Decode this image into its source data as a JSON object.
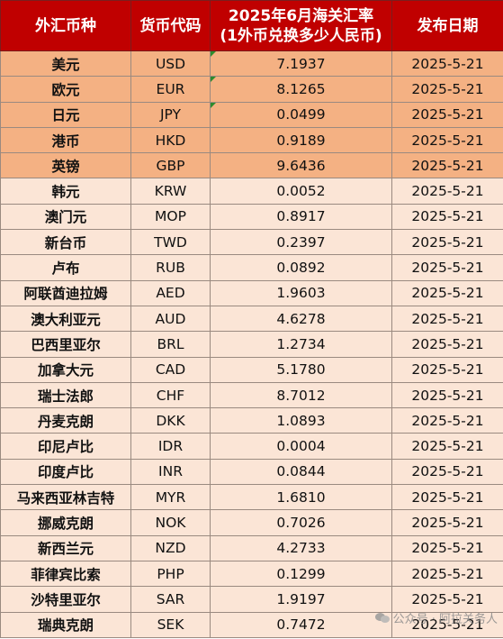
{
  "header": {
    "col1": "外汇币种",
    "col2": "货币代码",
    "col3_line1": "2025年6月海关汇率",
    "col3_line2": "(1外币兑换多少人民币)",
    "col4": "发布日期"
  },
  "rows": [
    {
      "name": "美元",
      "code": "USD",
      "rate": "7.1937",
      "date": "2025-5-21",
      "highlight": true,
      "mark": true
    },
    {
      "name": "欧元",
      "code": "EUR",
      "rate": "8.1265",
      "date": "2025-5-21",
      "highlight": true,
      "mark": true
    },
    {
      "name": "日元",
      "code": "JPY",
      "rate": "0.0499",
      "date": "2025-5-21",
      "highlight": true,
      "mark": true
    },
    {
      "name": "港币",
      "code": "HKD",
      "rate": "0.9189",
      "date": "2025-5-21",
      "highlight": true,
      "mark": false
    },
    {
      "name": "英镑",
      "code": "GBP",
      "rate": "9.6436",
      "date": "2025-5-21",
      "highlight": true,
      "mark": false
    },
    {
      "name": "韩元",
      "code": "KRW",
      "rate": "0.0052",
      "date": "2025-5-21",
      "highlight": false,
      "mark": false
    },
    {
      "name": "澳门元",
      "code": "MOP",
      "rate": "0.8917",
      "date": "2025-5-21",
      "highlight": false,
      "mark": false
    },
    {
      "name": "新台币",
      "code": "TWD",
      "rate": "0.2397",
      "date": "2025-5-21",
      "highlight": false,
      "mark": false
    },
    {
      "name": "卢布",
      "code": "RUB",
      "rate": "0.0892",
      "date": "2025-5-21",
      "highlight": false,
      "mark": false
    },
    {
      "name": "阿联酋迪拉姆",
      "code": "AED",
      "rate": "1.9603",
      "date": "2025-5-21",
      "highlight": false,
      "mark": false
    },
    {
      "name": "澳大利亚元",
      "code": "AUD",
      "rate": "4.6278",
      "date": "2025-5-21",
      "highlight": false,
      "mark": false
    },
    {
      "name": "巴西里亚尔",
      "code": "BRL",
      "rate": "1.2734",
      "date": "2025-5-21",
      "highlight": false,
      "mark": false
    },
    {
      "name": "加拿大元",
      "code": "CAD",
      "rate": "5.1780",
      "date": "2025-5-21",
      "highlight": false,
      "mark": false
    },
    {
      "name": "瑞士法郎",
      "code": "CHF",
      "rate": "8.7012",
      "date": "2025-5-21",
      "highlight": false,
      "mark": false
    },
    {
      "name": "丹麦克朗",
      "code": "DKK",
      "rate": "1.0893",
      "date": "2025-5-21",
      "highlight": false,
      "mark": false
    },
    {
      "name": "印尼卢比",
      "code": "IDR",
      "rate": "0.0004",
      "date": "2025-5-21",
      "highlight": false,
      "mark": false
    },
    {
      "name": "印度卢比",
      "code": "INR",
      "rate": "0.0844",
      "date": "2025-5-21",
      "highlight": false,
      "mark": false
    },
    {
      "name": "马来西亚林吉特",
      "code": "MYR",
      "rate": "1.6810",
      "date": "2025-5-21",
      "highlight": false,
      "mark": false
    },
    {
      "name": "挪威克朗",
      "code": "NOK",
      "rate": "0.7026",
      "date": "2025-5-21",
      "highlight": false,
      "mark": false
    },
    {
      "name": "新西兰元",
      "code": "NZD",
      "rate": "4.2733",
      "date": "2025-5-21",
      "highlight": false,
      "mark": false
    },
    {
      "name": "菲律宾比索",
      "code": "PHP",
      "rate": "0.1299",
      "date": "2025-5-21",
      "highlight": false,
      "mark": false
    },
    {
      "name": "沙特里亚尔",
      "code": "SAR",
      "rate": "1.9197",
      "date": "2025-5-21",
      "highlight": false,
      "mark": false
    },
    {
      "name": "瑞典克朗",
      "code": "SEK",
      "rate": "0.7472",
      "date": "2025-5-21",
      "highlight": false,
      "mark": false
    }
  ],
  "watermark": {
    "icon": "wechat-icon",
    "text": "公众号 · 阿拉关务人"
  },
  "colors": {
    "header_bg": "#c00000",
    "highlight_row": "#f4b183",
    "normal_row": "#fbe5d6",
    "comment_mark": "#2e8b2e"
  }
}
